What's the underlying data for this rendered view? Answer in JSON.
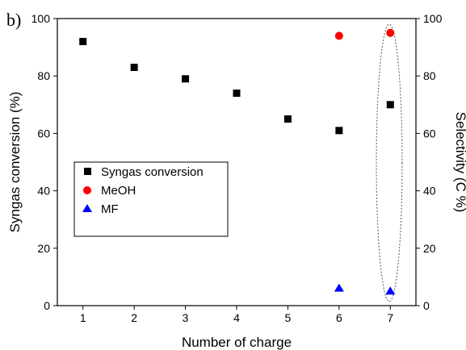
{
  "chart_data": {
    "type": "scatter",
    "panel_label": "b)",
    "xlabel": "Number of charge",
    "ylabel_left": "Syngas conversion (%)",
    "ylabel_right": "Selectivity (C %)",
    "xlim": [
      0.5,
      7.5
    ],
    "ylim_left": [
      0,
      100
    ],
    "ylim_right": [
      0,
      100
    ],
    "x_ticks": [
      1,
      2,
      3,
      4,
      5,
      6,
      7
    ],
    "y_ticks": [
      0,
      20,
      40,
      60,
      80,
      100
    ],
    "grid": false,
    "legend_position": "center-left",
    "highlight": {
      "shape": "dotted-ellipse",
      "around_x": 7
    },
    "series": [
      {
        "name": "Syngas conversion",
        "marker": "square",
        "color": "#000000",
        "axis": "left",
        "x": [
          1,
          2,
          3,
          4,
          5,
          6,
          7
        ],
        "y": [
          92,
          83,
          79,
          74,
          65,
          61,
          70
        ]
      },
      {
        "name": "MeOH",
        "marker": "circle",
        "color": "#ff0000",
        "axis": "right",
        "x": [
          6,
          7
        ],
        "y": [
          94,
          95
        ]
      },
      {
        "name": "MF",
        "marker": "triangle",
        "color": "#0000ff",
        "axis": "right",
        "x": [
          6,
          7
        ],
        "y": [
          6,
          5
        ]
      }
    ]
  }
}
